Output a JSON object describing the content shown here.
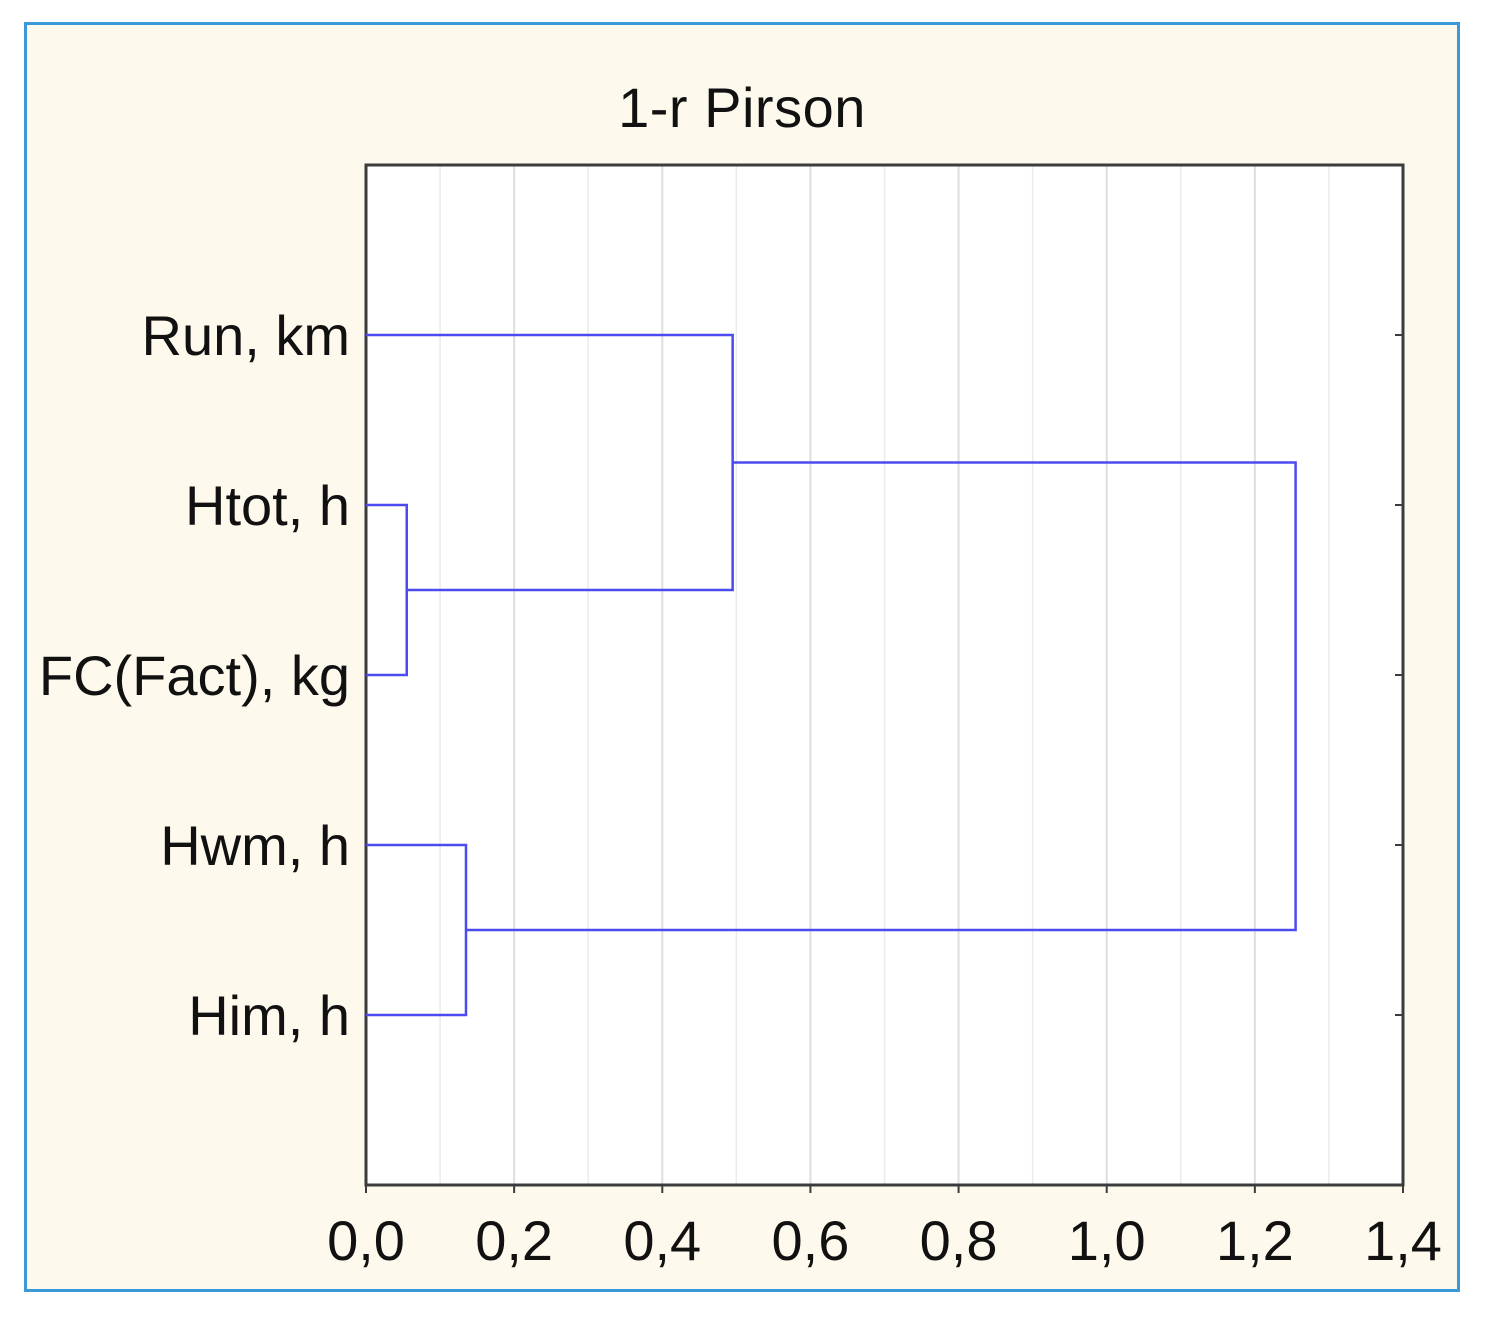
{
  "chart_data": {
    "type": "dendrogram",
    "title": "1-r Pirson",
    "xlabel": "",
    "ylabel": "",
    "xlim": [
      0.0,
      1.4
    ],
    "xticks": [
      "0,0",
      "0,2",
      "0,4",
      "0,6",
      "0,8",
      "1,0",
      "1,2",
      "1,4"
    ],
    "xtick_values": [
      0.0,
      0.2,
      0.4,
      0.6,
      0.8,
      1.0,
      1.2,
      1.4
    ],
    "leaves": [
      "Run, km",
      "Htot, h",
      "FC(Fact), kg",
      "Hwm, h",
      "Him, h"
    ],
    "merges": [
      {
        "left": "Htot, h",
        "right": "FC(Fact), kg",
        "distance": 0.055
      },
      {
        "left": "Hwm, h",
        "right": "Him, h",
        "distance": 0.135
      },
      {
        "left": "Run, km",
        "right": "Htot, h + FC(Fact), kg",
        "distance": 0.495
      },
      {
        "left": "Run, km + Htot, h + FC(Fact), kg",
        "right": "Hwm, h + Him, h",
        "distance": 1.255
      }
    ],
    "grid": true,
    "line_color": "#4b4bef"
  }
}
